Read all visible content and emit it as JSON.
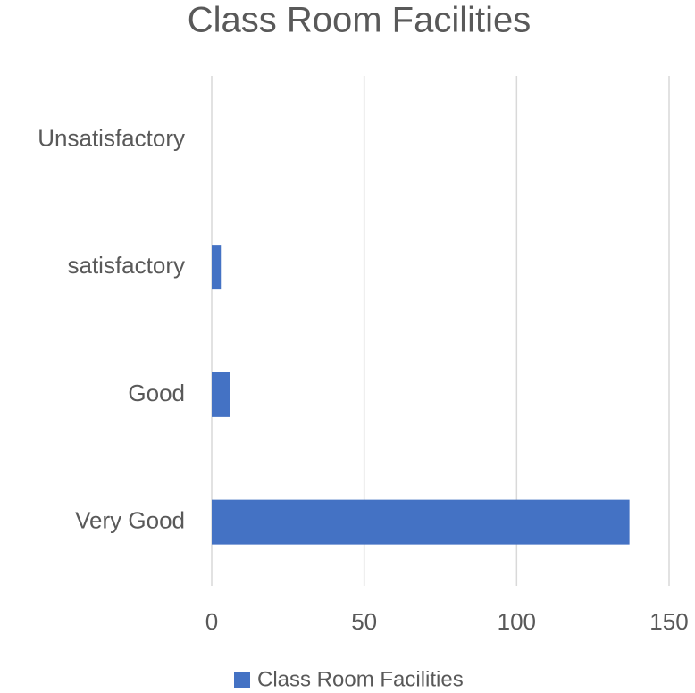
{
  "chart_data": {
    "type": "bar",
    "orientation": "horizontal",
    "title": "Class Room Facilities",
    "categories": [
      "Unsatisfactory",
      "satisfactory",
      "Good",
      "Very Good"
    ],
    "series": [
      {
        "name": "Class Room Facilities",
        "color": "#4472c4",
        "values": [
          0,
          3,
          6,
          137
        ]
      }
    ],
    "xlim": [
      0,
      150
    ],
    "xticks": [
      0,
      50,
      100,
      150
    ],
    "grid": true,
    "legend": "bottom"
  }
}
